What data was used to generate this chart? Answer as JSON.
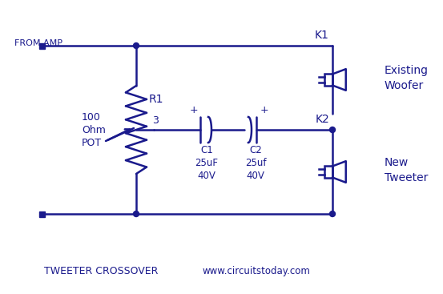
{
  "color": "#1a1a8c",
  "bg_color": "#ffffff",
  "title": "TWEETER CROSSOVER",
  "website": "www.circuitstoday.com",
  "from_amp": "FROM AMP",
  "k1_label": "K1",
  "k2_label": "K2",
  "existing_woofer": "Existing\nWoofer",
  "new_tweeter": "New\nTweeter",
  "r1_label": "R1",
  "pot_label": "100\nOhm\nPOT",
  "c1_label": "C1\n25uF\n40V",
  "c2_label": "C2\n25uf\n40V",
  "cap_plus_c1": "+",
  "cap_plus_c2": "+",
  "node3": "3"
}
